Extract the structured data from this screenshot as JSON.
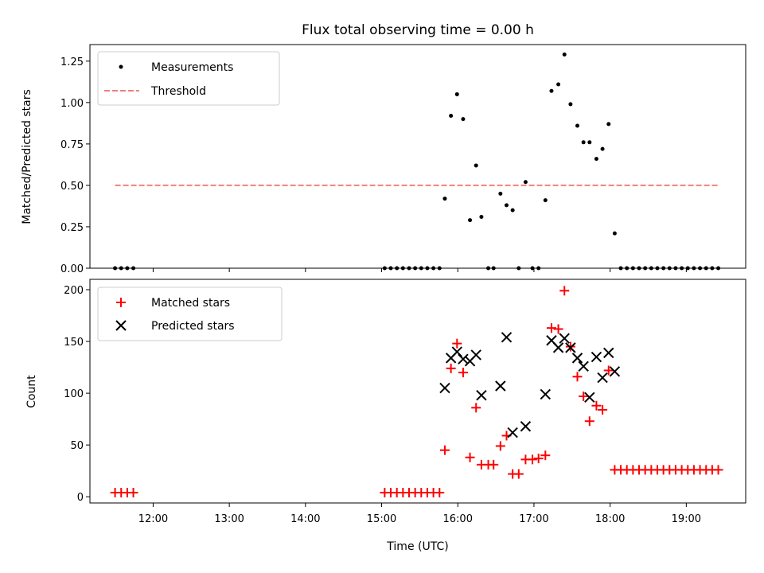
{
  "chart_data": [
    {
      "type": "scatter",
      "title": "Flux total observing time = 0.00 h",
      "xlabel": "",
      "ylabel": "Matched/Predicted stars",
      "xlim": [
        11.17,
        19.78
      ],
      "ylim": [
        0,
        1.35
      ],
      "yticks": [
        0.0,
        0.25,
        0.5,
        0.75,
        1.0,
        1.25
      ],
      "ytick_labels": [
        "0.00",
        "0.25",
        "0.50",
        "0.75",
        "1.00",
        "1.25"
      ],
      "legend": {
        "position": "top-left",
        "entries": [
          "Measurements",
          "Threshold"
        ]
      },
      "series": [
        {
          "name": "Measurements",
          "marker": "dot",
          "color": "#000000",
          "points": [
            [
              11.5,
              0
            ],
            [
              11.58,
              0
            ],
            [
              11.66,
              0
            ],
            [
              11.74,
              0
            ],
            [
              15.04,
              0
            ],
            [
              15.12,
              0
            ],
            [
              15.2,
              0
            ],
            [
              15.28,
              0
            ],
            [
              15.36,
              0
            ],
            [
              15.44,
              0
            ],
            [
              15.52,
              0
            ],
            [
              15.6,
              0
            ],
            [
              15.68,
              0
            ],
            [
              15.76,
              0
            ],
            [
              15.83,
              0.42
            ],
            [
              15.91,
              0.92
            ],
            [
              15.99,
              1.05
            ],
            [
              16.07,
              0.9
            ],
            [
              16.16,
              0.29
            ],
            [
              16.24,
              0.62
            ],
            [
              16.31,
              0.31
            ],
            [
              16.4,
              0
            ],
            [
              16.47,
              0
            ],
            [
              16.56,
              0.45
            ],
            [
              16.64,
              0.38
            ],
            [
              16.72,
              0.35
            ],
            [
              16.8,
              0
            ],
            [
              16.89,
              0.52
            ],
            [
              16.98,
              0
            ],
            [
              17.06,
              0
            ],
            [
              17.15,
              0.41
            ],
            [
              17.23,
              1.07
            ],
            [
              17.32,
              1.11
            ],
            [
              17.4,
              1.29
            ],
            [
              17.48,
              0.99
            ],
            [
              17.57,
              0.86
            ],
            [
              17.65,
              0.76
            ],
            [
              17.73,
              0.76
            ],
            [
              17.82,
              0.66
            ],
            [
              17.9,
              0.72
            ],
            [
              17.98,
              0.87
            ],
            [
              18.06,
              0.21
            ],
            [
              18.14,
              0
            ],
            [
              18.22,
              0
            ],
            [
              18.3,
              0
            ],
            [
              18.38,
              0
            ],
            [
              18.46,
              0
            ],
            [
              18.54,
              0
            ],
            [
              18.62,
              0
            ],
            [
              18.7,
              0
            ],
            [
              18.78,
              0
            ],
            [
              18.86,
              0
            ],
            [
              18.94,
              0
            ],
            [
              19.02,
              0
            ],
            [
              19.1,
              0
            ],
            [
              19.18,
              0
            ],
            [
              19.26,
              0
            ],
            [
              19.34,
              0
            ],
            [
              19.42,
              0
            ]
          ]
        },
        {
          "name": "Threshold",
          "marker": "dashed-line",
          "color": "#f08080",
          "points": [
            [
              11.5,
              0.5
            ],
            [
              19.42,
              0.5
            ]
          ]
        }
      ]
    },
    {
      "type": "scatter",
      "title": "",
      "xlabel": "Time (UTC)",
      "ylabel": "Count",
      "xlim": [
        11.17,
        19.78
      ],
      "ylim": [
        -6,
        210
      ],
      "yticks": [
        0,
        50,
        100,
        150,
        200
      ],
      "ytick_labels": [
        "0",
        "50",
        "100",
        "150",
        "200"
      ],
      "xticks": [
        12,
        13,
        14,
        15,
        16,
        17,
        18,
        19
      ],
      "xtick_labels": [
        "12:00",
        "13:00",
        "14:00",
        "15:00",
        "16:00",
        "17:00",
        "18:00",
        "19:00"
      ],
      "legend": {
        "position": "top-left",
        "entries": [
          "Matched stars",
          "Predicted stars"
        ]
      },
      "series": [
        {
          "name": "Matched stars",
          "marker": "plus",
          "color": "#ff0000",
          "points": [
            [
              11.5,
              4
            ],
            [
              11.58,
              4
            ],
            [
              11.66,
              4
            ],
            [
              11.74,
              4
            ],
            [
              15.04,
              4
            ],
            [
              15.12,
              4
            ],
            [
              15.2,
              4
            ],
            [
              15.28,
              4
            ],
            [
              15.36,
              4
            ],
            [
              15.44,
              4
            ],
            [
              15.52,
              4
            ],
            [
              15.6,
              4
            ],
            [
              15.68,
              4
            ],
            [
              15.76,
              4
            ],
            [
              15.83,
              45
            ],
            [
              15.91,
              124
            ],
            [
              15.99,
              148
            ],
            [
              16.07,
              120
            ],
            [
              16.16,
              38
            ],
            [
              16.24,
              86
            ],
            [
              16.31,
              31
            ],
            [
              16.4,
              31
            ],
            [
              16.47,
              31
            ],
            [
              16.56,
              49
            ],
            [
              16.64,
              59
            ],
            [
              16.72,
              22
            ],
            [
              16.8,
              22
            ],
            [
              16.89,
              36
            ],
            [
              16.98,
              36
            ],
            [
              17.06,
              37
            ],
            [
              17.15,
              40
            ],
            [
              17.23,
              163
            ],
            [
              17.32,
              162
            ],
            [
              17.4,
              199
            ],
            [
              17.48,
              145
            ],
            [
              17.57,
              116
            ],
            [
              17.65,
              97
            ],
            [
              17.73,
              73
            ],
            [
              17.82,
              88
            ],
            [
              17.9,
              84
            ],
            [
              17.98,
              122
            ],
            [
              18.06,
              26
            ],
            [
              18.14,
              26
            ],
            [
              18.22,
              26
            ],
            [
              18.3,
              26
            ],
            [
              18.38,
              26
            ],
            [
              18.46,
              26
            ],
            [
              18.54,
              26
            ],
            [
              18.62,
              26
            ],
            [
              18.7,
              26
            ],
            [
              18.78,
              26
            ],
            [
              18.86,
              26
            ],
            [
              18.94,
              26
            ],
            [
              19.02,
              26
            ],
            [
              19.1,
              26
            ],
            [
              19.18,
              26
            ],
            [
              19.26,
              26
            ],
            [
              19.34,
              26
            ],
            [
              19.42,
              26
            ]
          ]
        },
        {
          "name": "Predicted stars",
          "marker": "x",
          "color": "#000000",
          "points": [
            [
              15.83,
              105
            ],
            [
              15.91,
              134
            ],
            [
              15.99,
              140
            ],
            [
              16.07,
              133
            ],
            [
              16.16,
              131
            ],
            [
              16.24,
              137
            ],
            [
              16.31,
              98
            ],
            [
              16.56,
              107
            ],
            [
              16.64,
              154
            ],
            [
              16.72,
              62
            ],
            [
              16.89,
              68
            ],
            [
              17.15,
              99
            ],
            [
              17.23,
              151
            ],
            [
              17.32,
              144
            ],
            [
              17.4,
              153
            ],
            [
              17.48,
              144
            ],
            [
              17.57,
              134
            ],
            [
              17.65,
              126
            ],
            [
              17.73,
              96
            ],
            [
              17.82,
              135
            ],
            [
              17.9,
              115
            ],
            [
              17.98,
              139
            ],
            [
              18.06,
              121
            ]
          ]
        }
      ]
    }
  ]
}
